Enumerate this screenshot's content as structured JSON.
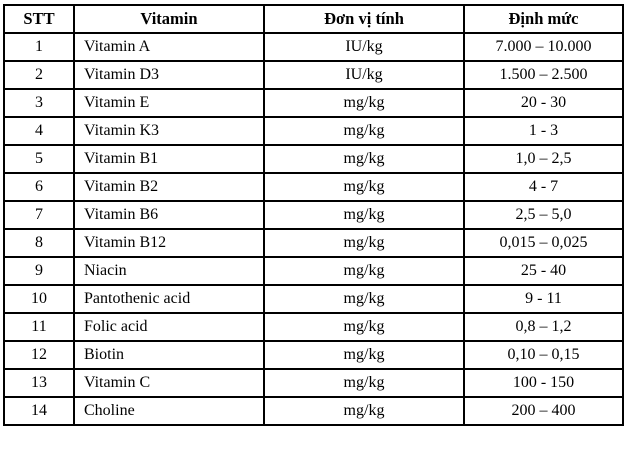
{
  "table": {
    "headers": {
      "stt": "STT",
      "vitamin": "Vitamin",
      "unit": "Đơn vị tính",
      "range": "Định mức"
    },
    "rows": [
      {
        "stt": "1",
        "vitamin": "Vitamin A",
        "unit": "IU/kg",
        "range": "7.000 – 10.000"
      },
      {
        "stt": "2",
        "vitamin": "Vitamin D3",
        "unit": "IU/kg",
        "range": "1.500 – 2.500"
      },
      {
        "stt": "3",
        "vitamin": "Vitamin E",
        "unit": "mg/kg",
        "range": "20 - 30"
      },
      {
        "stt": "4",
        "vitamin": "Vitamin K3",
        "unit": "mg/kg",
        "range": "1 - 3"
      },
      {
        "stt": "5",
        "vitamin": "Vitamin B1",
        "unit": "mg/kg",
        "range": "1,0 – 2,5"
      },
      {
        "stt": "6",
        "vitamin": "Vitamin B2",
        "unit": "mg/kg",
        "range": "4 - 7"
      },
      {
        "stt": "7",
        "vitamin": "Vitamin B6",
        "unit": "mg/kg",
        "range": "2,5 – 5,0"
      },
      {
        "stt": "8",
        "vitamin": "Vitamin B12",
        "unit": "mg/kg",
        "range": "0,015 – 0,025"
      },
      {
        "stt": "9",
        "vitamin": "Niacin",
        "unit": "mg/kg",
        "range": "25 - 40"
      },
      {
        "stt": "10",
        "vitamin": "Pantothenic acid",
        "unit": "mg/kg",
        "range": "9 - 11"
      },
      {
        "stt": "11",
        "vitamin": "Folic acid",
        "unit": "mg/kg",
        "range": "0,8 – 1,2"
      },
      {
        "stt": "12",
        "vitamin": "Biotin",
        "unit": "mg/kg",
        "range": "0,10 – 0,15"
      },
      {
        "stt": "13",
        "vitamin": "Vitamin C",
        "unit": "mg/kg",
        "range": "100 - 150"
      },
      {
        "stt": "14",
        "vitamin": "Choline",
        "unit": "mg/kg",
        "range": "200 – 400"
      }
    ]
  }
}
